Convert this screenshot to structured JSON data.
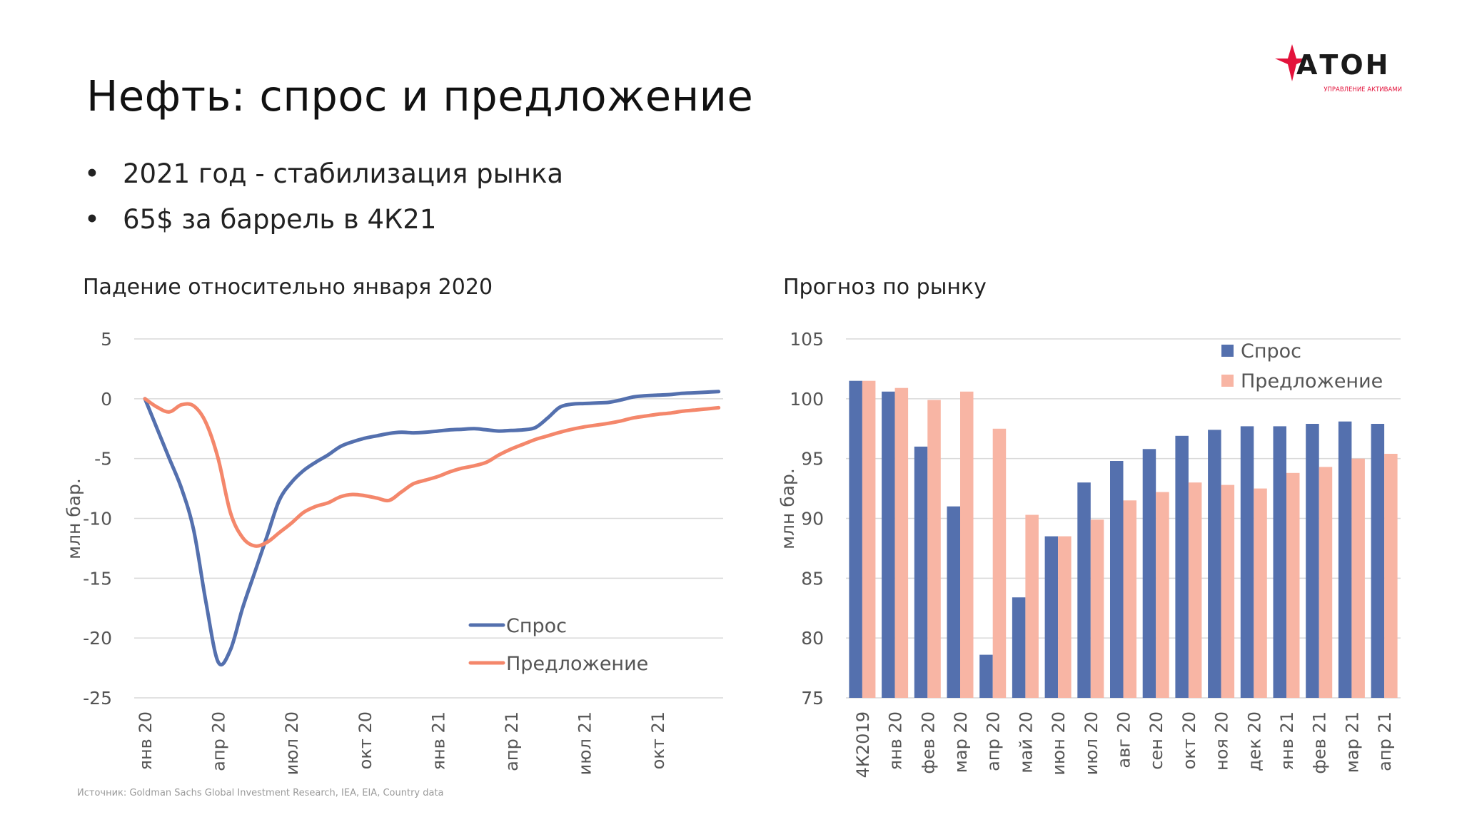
{
  "page": {
    "title": "Нефть: спрос и предложение",
    "bullets": [
      "2021 год - стабилизация рынка",
      "65$ за баррель в 4К21"
    ],
    "source": "Источник: Goldman Sachs Global Investment Research, IEA, EIA, Country data"
  },
  "logo": {
    "name": "АТОН",
    "tagline": "УПРАВЛЕНИЕ АКТИВАМИ",
    "color": "#e3123b"
  },
  "chart_data": [
    {
      "type": "line",
      "title": "Падение относительно января 2020",
      "ylabel": "млн бар.",
      "ylim": [
        -25,
        5
      ],
      "yticks": [
        5,
        0,
        -5,
        -10,
        -15,
        -20,
        -25
      ],
      "xtick_labels": [
        "янв 20",
        "апр 20",
        "июл 20",
        "окт 20",
        "янв 21",
        "апр 21",
        "июл 21",
        "окт 21"
      ],
      "legend_position": "bottom-right",
      "series": [
        {
          "name": "Спрос",
          "color": "#5470ae",
          "x": [
            0,
            0.5,
            1,
            1.5,
            2,
            2.5,
            3,
            3.5,
            4,
            4.5,
            5,
            5.5,
            6,
            6.5,
            7,
            7.5,
            8,
            8.5,
            9,
            9.5,
            10,
            10.5,
            11,
            11.5,
            12,
            12.5,
            13,
            13.5,
            14,
            14.5,
            15,
            15.5,
            16,
            16.5,
            17,
            17.5,
            18,
            18.5,
            19,
            19.5,
            20,
            20.5,
            21,
            21.5,
            22,
            22.5,
            23,
            23.5
          ],
          "values": [
            0,
            -2.5,
            -5,
            -7.5,
            -11,
            -17,
            -22,
            -21,
            -17.5,
            -14.5,
            -11.5,
            -8.5,
            -7,
            -6,
            -5.3,
            -4.7,
            -4,
            -3.6,
            -3.3,
            -3.1,
            -2.9,
            -2.8,
            -2.85,
            -2.8,
            -2.7,
            -2.6,
            -2.55,
            -2.5,
            -2.6,
            -2.7,
            -2.65,
            -2.6,
            -2.4,
            -1.6,
            -0.7,
            -0.45,
            -0.4,
            -0.35,
            -0.3,
            -0.1,
            0.15,
            0.25,
            0.3,
            0.35,
            0.45,
            0.5,
            0.55,
            0.6
          ]
        },
        {
          "name": "Предложение",
          "color": "#f4876b",
          "x": [
            0,
            0.5,
            1,
            1.5,
            2,
            2.5,
            3,
            3.5,
            4,
            4.5,
            5,
            5.5,
            6,
            6.5,
            7,
            7.5,
            8,
            8.5,
            9,
            9.5,
            10,
            10.5,
            11,
            11.5,
            12,
            12.5,
            13,
            13.5,
            14,
            14.5,
            15,
            15.5,
            16,
            16.5,
            17,
            17.5,
            18,
            18.5,
            19,
            19.5,
            20,
            20.5,
            21,
            21.5,
            22,
            22.5,
            23,
            23.5
          ],
          "values": [
            0,
            -0.7,
            -1.1,
            -0.5,
            -0.6,
            -2,
            -5,
            -9.5,
            -11.6,
            -12.3,
            -12,
            -11.2,
            -10.4,
            -9.5,
            -9,
            -8.7,
            -8.2,
            -8,
            -8.1,
            -8.3,
            -8.5,
            -7.8,
            -7.1,
            -6.8,
            -6.5,
            -6.1,
            -5.8,
            -5.6,
            -5.3,
            -4.7,
            -4.2,
            -3.8,
            -3.4,
            -3.1,
            -2.8,
            -2.55,
            -2.35,
            -2.2,
            -2.05,
            -1.85,
            -1.6,
            -1.45,
            -1.3,
            -1.2,
            -1.05,
            -0.95,
            -0.85,
            -0.75
          ]
        }
      ]
    },
    {
      "type": "bar",
      "title": "Прогноз по рынку",
      "ylabel": "млн бар.",
      "ylim": [
        75,
        105
      ],
      "yticks": [
        105,
        100,
        95,
        90,
        85,
        80,
        75
      ],
      "categories": [
        "4К2019",
        "янв 20",
        "фев 20",
        "мар 20",
        "апр 20",
        "май 20",
        "июн 20",
        "июл 20",
        "авг 20",
        "сен 20",
        "окт 20",
        "ноя 20",
        "дек 20",
        "янв 21",
        "фев 21",
        "мар 21",
        "апр 21"
      ],
      "legend_position": "top-right",
      "series": [
        {
          "name": "Спрос",
          "color": "#5470ae",
          "values": [
            101.5,
            100.6,
            96.0,
            91.0,
            78.6,
            83.4,
            88.5,
            93.0,
            94.8,
            95.8,
            96.9,
            97.4,
            97.7,
            97.7,
            97.9,
            98.1,
            97.9
          ]
        },
        {
          "name": "Предложение",
          "color": "#f8b5a4",
          "values": [
            101.5,
            100.9,
            99.9,
            100.6,
            97.5,
            90.3,
            88.5,
            89.9,
            91.5,
            92.2,
            93.0,
            92.8,
            92.5,
            93.8,
            94.3,
            95.0,
            95.4
          ]
        }
      ]
    }
  ]
}
